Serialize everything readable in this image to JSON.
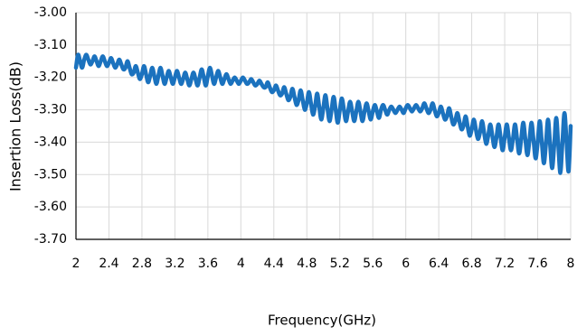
{
  "chart_data": {
    "type": "line",
    "xlabel": "Frequency(GHz)",
    "ylabel": "Insertion Loss(dB)",
    "color": "#1b72be",
    "grid": true,
    "xlim": [
      2,
      8
    ],
    "xticks": [
      2,
      2.4,
      2.8,
      3.2,
      3.6,
      4,
      4.4,
      4.8,
      5.2,
      5.6,
      6,
      6.4,
      6.8,
      7.2,
      7.6,
      8
    ],
    "ylim": [
      -3.7,
      -3.0
    ],
    "yticks": [
      {
        "value": -3.7,
        "label": "-3.70"
      },
      {
        "value": -3.6,
        "label": "-3.60"
      },
      {
        "value": -3.5,
        "label": "-3.50"
      },
      {
        "value": -3.4,
        "label": "-3.40"
      },
      {
        "value": -3.3,
        "label": "-3.30"
      },
      {
        "value": -3.2,
        "label": "-3.20"
      },
      {
        "value": -3.1,
        "label": "-3.10"
      },
      {
        "value": -3.0,
        "label": "-3.00"
      }
    ],
    "x": [
      2,
      2.025,
      2.05,
      2.075,
      2.1,
      2.125,
      2.15,
      2.175,
      2.2,
      2.225,
      2.25,
      2.275,
      2.3,
      2.325,
      2.35,
      2.375,
      2.4,
      2.425,
      2.45,
      2.475,
      2.5,
      2.525,
      2.55,
      2.575,
      2.6,
      2.625,
      2.65,
      2.675,
      2.7,
      2.725,
      2.75,
      2.775,
      2.8,
      2.825,
      2.85,
      2.875,
      2.9,
      2.925,
      2.95,
      2.975,
      3,
      3.025,
      3.05,
      3.075,
      3.1,
      3.125,
      3.15,
      3.175,
      3.2,
      3.225,
      3.25,
      3.275,
      3.3,
      3.325,
      3.35,
      3.375,
      3.4,
      3.425,
      3.45,
      3.475,
      3.5,
      3.525,
      3.55,
      3.575,
      3.6,
      3.625,
      3.65,
      3.675,
      3.7,
      3.725,
      3.75,
      3.775,
      3.8,
      3.825,
      3.85,
      3.875,
      3.9,
      3.925,
      3.95,
      3.975,
      4,
      4.025,
      4.05,
      4.075,
      4.1,
      4.125,
      4.15,
      4.175,
      4.2,
      4.225,
      4.25,
      4.275,
      4.3,
      4.325,
      4.35,
      4.375,
      4.4,
      4.425,
      4.45,
      4.475,
      4.5,
      4.525,
      4.55,
      4.575,
      4.6,
      4.625,
      4.65,
      4.675,
      4.7,
      4.725,
      4.75,
      4.775,
      4.8,
      4.825,
      4.85,
      4.875,
      4.9,
      4.925,
      4.95,
      4.975,
      5,
      5.025,
      5.05,
      5.075,
      5.1,
      5.125,
      5.15,
      5.175,
      5.2,
      5.225,
      5.25,
      5.275,
      5.3,
      5.325,
      5.35,
      5.375,
      5.4,
      5.425,
      5.45,
      5.475,
      5.5,
      5.525,
      5.55,
      5.575,
      5.6,
      5.625,
      5.65,
      5.675,
      5.7,
      5.725,
      5.75,
      5.775,
      5.8,
      5.825,
      5.85,
      5.875,
      5.9,
      5.925,
      5.95,
      5.975,
      6,
      6.025,
      6.05,
      6.075,
      6.1,
      6.125,
      6.15,
      6.175,
      6.2,
      6.225,
      6.25,
      6.275,
      6.3,
      6.325,
      6.35,
      6.375,
      6.4,
      6.425,
      6.45,
      6.475,
      6.5,
      6.525,
      6.55,
      6.575,
      6.6,
      6.625,
      6.65,
      6.675,
      6.7,
      6.725,
      6.75,
      6.775,
      6.8,
      6.825,
      6.85,
      6.875,
      6.9,
      6.925,
      6.95,
      6.975,
      7,
      7.025,
      7.05,
      7.075,
      7.1,
      7.125,
      7.15,
      7.175,
      7.2,
      7.225,
      7.25,
      7.275,
      7.3,
      7.325,
      7.35,
      7.375,
      7.4,
      7.425,
      7.45,
      7.475,
      7.5,
      7.525,
      7.55,
      7.575,
      7.6,
      7.625,
      7.65,
      7.675,
      7.7,
      7.725,
      7.75,
      7.775,
      7.8,
      7.825,
      7.85,
      7.875,
      7.9,
      7.925,
      7.95,
      7.975,
      8
    ],
    "values": [
      -3.17,
      -3.13,
      -3.15,
      -3.17,
      -3.145,
      -3.13,
      -3.145,
      -3.16,
      -3.15,
      -3.135,
      -3.15,
      -3.165,
      -3.15,
      -3.135,
      -3.15,
      -3.165,
      -3.155,
      -3.14,
      -3.155,
      -3.17,
      -3.16,
      -3.145,
      -3.16,
      -3.175,
      -3.17,
      -3.15,
      -3.17,
      -3.19,
      -3.185,
      -3.165,
      -3.185,
      -3.205,
      -3.19,
      -3.165,
      -3.19,
      -3.215,
      -3.195,
      -3.17,
      -3.195,
      -3.22,
      -3.195,
      -3.17,
      -3.195,
      -3.22,
      -3.2,
      -3.18,
      -3.2,
      -3.22,
      -3.2,
      -3.18,
      -3.2,
      -3.22,
      -3.205,
      -3.185,
      -3.205,
      -3.225,
      -3.205,
      -3.185,
      -3.205,
      -3.225,
      -3.2,
      -3.175,
      -3.2,
      -3.225,
      -3.195,
      -3.17,
      -3.195,
      -3.22,
      -3.2,
      -3.18,
      -3.2,
      -3.22,
      -3.205,
      -3.19,
      -3.205,
      -3.22,
      -3.21,
      -3.2,
      -3.21,
      -3.22,
      -3.21,
      -3.2,
      -3.21,
      -3.22,
      -3.215,
      -3.205,
      -3.215,
      -3.225,
      -3.22,
      -3.21,
      -3.22,
      -3.23,
      -3.23,
      -3.215,
      -3.23,
      -3.245,
      -3.24,
      -3.225,
      -3.24,
      -3.255,
      -3.25,
      -3.23,
      -3.25,
      -3.27,
      -3.26,
      -3.235,
      -3.26,
      -3.285,
      -3.27,
      -3.24,
      -3.27,
      -3.3,
      -3.28,
      -3.245,
      -3.28,
      -3.315,
      -3.29,
      -3.25,
      -3.29,
      -3.33,
      -3.295,
      -3.255,
      -3.295,
      -3.335,
      -3.3,
      -3.26,
      -3.3,
      -3.34,
      -3.3,
      -3.265,
      -3.3,
      -3.335,
      -3.305,
      -3.275,
      -3.305,
      -3.335,
      -3.305,
      -3.275,
      -3.305,
      -3.335,
      -3.305,
      -3.28,
      -3.305,
      -3.33,
      -3.305,
      -3.285,
      -3.305,
      -3.325,
      -3.3,
      -3.285,
      -3.3,
      -3.315,
      -3.3,
      -3.29,
      -3.3,
      -3.31,
      -3.3,
      -3.29,
      -3.3,
      -3.31,
      -3.295,
      -3.285,
      -3.295,
      -3.305,
      -3.295,
      -3.285,
      -3.295,
      -3.305,
      -3.295,
      -3.28,
      -3.295,
      -3.31,
      -3.3,
      -3.28,
      -3.3,
      -3.32,
      -3.31,
      -3.29,
      -3.31,
      -3.33,
      -3.32,
      -3.295,
      -3.32,
      -3.345,
      -3.335,
      -3.31,
      -3.335,
      -3.36,
      -3.35,
      -3.32,
      -3.35,
      -3.38,
      -3.36,
      -3.33,
      -3.36,
      -3.39,
      -3.37,
      -3.335,
      -3.37,
      -3.405,
      -3.38,
      -3.345,
      -3.38,
      -3.415,
      -3.385,
      -3.345,
      -3.385,
      -3.425,
      -3.385,
      -3.345,
      -3.385,
      -3.425,
      -3.39,
      -3.345,
      -3.39,
      -3.435,
      -3.39,
      -3.34,
      -3.39,
      -3.44,
      -3.395,
      -3.34,
      -3.395,
      -3.45,
      -3.4,
      -3.335,
      -3.4,
      -3.465,
      -3.405,
      -3.33,
      -3.405,
      -3.48,
      -3.41,
      -3.325,
      -3.41,
      -3.495,
      -3.4,
      -3.31,
      -3.4,
      -3.49,
      -3.35
    ]
  }
}
